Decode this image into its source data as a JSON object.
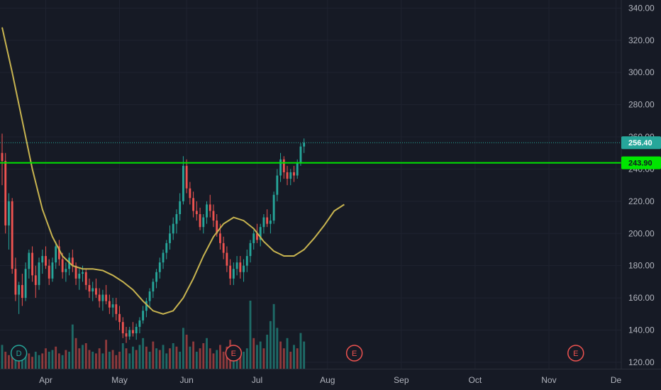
{
  "chart_data": {
    "type": "candlestick",
    "y_axis": {
      "ticks": [
        "340.00",
        "320.00",
        "300.00",
        "280.00",
        "260.00",
        "240.00",
        "220.00",
        "200.00",
        "180.00",
        "160.00",
        "140.00",
        "120.00"
      ],
      "tick_values": [
        340,
        320,
        300,
        280,
        260,
        240,
        220,
        200,
        180,
        160,
        140,
        120
      ],
      "range": [
        116,
        345
      ]
    },
    "x_axis": {
      "ticks": [
        "Apr",
        "May",
        "Jun",
        "Jul",
        "Aug",
        "Sep",
        "Oct",
        "Nov",
        "De"
      ],
      "tick_days": [
        13,
        35,
        55,
        76,
        97,
        119,
        141,
        163,
        183
      ],
      "range_days": [
        0,
        185
      ]
    },
    "price_labels": {
      "last": "256.40",
      "line": "243.90"
    },
    "values": {
      "last_price": 256.4,
      "horizontal_line": 243.9
    },
    "colors": {
      "up": "#26a69a",
      "down": "#ef5350",
      "up_volume": "#1e6b67",
      "down_volume": "#8e3a3c",
      "moving_average": "#c8b450",
      "horizontal_line": "#00e600",
      "last_price": "#26a69a"
    },
    "markers": [
      {
        "text": "D",
        "day": 5,
        "color": "#26a69a"
      },
      {
        "text": "E",
        "day": 69,
        "color": "#ef5350"
      },
      {
        "text": "E",
        "day": 105,
        "color": "#ef5350"
      },
      {
        "text": "E",
        "day": 171,
        "color": "#ef5350"
      }
    ],
    "ohlc": [
      [
        0,
        250,
        262,
        230,
        245
      ],
      [
        1,
        245,
        250,
        200,
        205
      ],
      [
        2,
        205,
        225,
        190,
        220
      ],
      [
        3,
        220,
        222,
        175,
        178
      ],
      [
        4,
        178,
        185,
        158,
        162
      ],
      [
        5,
        162,
        170,
        150,
        168
      ],
      [
        6,
        168,
        175,
        155,
        160
      ],
      [
        7,
        160,
        182,
        158,
        178
      ],
      [
        8,
        178,
        190,
        172,
        188
      ],
      [
        9,
        188,
        192,
        170,
        174
      ],
      [
        10,
        174,
        180,
        160,
        168
      ],
      [
        11,
        168,
        185,
        165,
        182
      ],
      [
        12,
        182,
        190,
        175,
        186
      ],
      [
        13,
        186,
        192,
        178,
        180
      ],
      [
        14,
        180,
        184,
        168,
        172
      ],
      [
        15,
        172,
        185,
        170,
        182
      ],
      [
        16,
        182,
        195,
        178,
        192
      ],
      [
        17,
        192,
        196,
        180,
        184
      ],
      [
        18,
        184,
        188,
        172,
        176
      ],
      [
        19,
        176,
        182,
        170,
        178
      ],
      [
        20,
        178,
        188,
        174,
        185
      ],
      [
        21,
        185,
        190,
        176,
        180
      ],
      [
        22,
        180,
        182,
        168,
        172
      ],
      [
        23,
        172,
        178,
        165,
        175
      ],
      [
        24,
        175,
        180,
        170,
        176
      ],
      [
        25,
        176,
        178,
        165,
        168
      ],
      [
        26,
        168,
        172,
        160,
        164
      ],
      [
        27,
        164,
        170,
        158,
        166
      ],
      [
        28,
        166,
        172,
        160,
        162
      ],
      [
        29,
        162,
        166,
        154,
        158
      ],
      [
        30,
        158,
        165,
        152,
        162
      ],
      [
        31,
        162,
        168,
        156,
        158
      ],
      [
        32,
        158,
        162,
        150,
        154
      ],
      [
        33,
        154,
        160,
        148,
        156
      ],
      [
        34,
        156,
        160,
        146,
        150
      ],
      [
        35,
        150,
        155,
        140,
        145
      ],
      [
        36,
        145,
        148,
        135,
        138
      ],
      [
        37,
        138,
        142,
        132,
        136
      ],
      [
        38,
        136,
        142,
        134,
        140
      ],
      [
        39,
        140,
        145,
        136,
        138
      ],
      [
        40,
        138,
        144,
        134,
        142
      ],
      [
        41,
        142,
        148,
        138,
        146
      ],
      [
        42,
        146,
        155,
        144,
        152
      ],
      [
        43,
        152,
        160,
        148,
        158
      ],
      [
        44,
        158,
        166,
        154,
        164
      ],
      [
        45,
        164,
        172,
        160,
        170
      ],
      [
        46,
        170,
        178,
        166,
        176
      ],
      [
        47,
        176,
        185,
        172,
        182
      ],
      [
        48,
        182,
        190,
        178,
        188
      ],
      [
        49,
        188,
        196,
        184,
        194
      ],
      [
        50,
        194,
        205,
        190,
        200
      ],
      [
        51,
        200,
        210,
        196,
        206
      ],
      [
        52,
        206,
        215,
        200,
        212
      ],
      [
        53,
        212,
        225,
        208,
        220
      ],
      [
        54,
        220,
        248,
        218,
        242
      ],
      [
        55,
        242,
        246,
        225,
        228
      ],
      [
        56,
        228,
        232,
        218,
        222
      ],
      [
        57,
        222,
        226,
        210,
        214
      ],
      [
        58,
        214,
        220,
        208,
        212
      ],
      [
        59,
        212,
        216,
        202,
        204
      ],
      [
        60,
        204,
        212,
        200,
        210
      ],
      [
        61,
        210,
        220,
        206,
        218
      ],
      [
        62,
        218,
        224,
        210,
        214
      ],
      [
        63,
        214,
        218,
        204,
        208
      ],
      [
        64,
        208,
        212,
        198,
        200
      ],
      [
        65,
        200,
        206,
        190,
        194
      ],
      [
        66,
        194,
        198,
        184,
        188
      ],
      [
        67,
        188,
        192,
        176,
        180
      ],
      [
        68,
        180,
        184,
        168,
        172
      ],
      [
        69,
        172,
        182,
        168,
        178
      ],
      [
        70,
        178,
        186,
        174,
        182
      ],
      [
        71,
        182,
        186,
        172,
        176
      ],
      [
        72,
        176,
        184,
        170,
        180
      ],
      [
        73,
        180,
        190,
        176,
        186
      ],
      [
        74,
        186,
        196,
        182,
        194
      ],
      [
        75,
        194,
        202,
        190,
        200
      ],
      [
        76,
        200,
        206,
        194,
        196
      ],
      [
        77,
        196,
        206,
        192,
        204
      ],
      [
        78,
        204,
        212,
        200,
        210
      ],
      [
        79,
        210,
        215,
        204,
        206
      ],
      [
        80,
        206,
        212,
        200,
        208
      ],
      [
        81,
        208,
        226,
        206,
        224
      ],
      [
        82,
        224,
        240,
        220,
        236
      ],
      [
        83,
        236,
        250,
        232,
        246
      ],
      [
        84,
        246,
        248,
        234,
        238
      ],
      [
        85,
        238,
        242,
        230,
        234
      ],
      [
        86,
        234,
        240,
        230,
        238
      ],
      [
        87,
        238,
        242,
        232,
        236
      ],
      [
        88,
        236,
        246,
        234,
        244
      ],
      [
        89,
        244,
        256,
        242,
        254
      ],
      [
        90,
        254,
        259,
        250,
        256.4
      ]
    ],
    "volume": [
      [
        0,
        14,
        1
      ],
      [
        1,
        10,
        0
      ],
      [
        2,
        8,
        0
      ],
      [
        3,
        9,
        0
      ],
      [
        4,
        7,
        1
      ],
      [
        5,
        6,
        0
      ],
      [
        6,
        8,
        1
      ],
      [
        7,
        11,
        1
      ],
      [
        8,
        9,
        0
      ],
      [
        9,
        7,
        0
      ],
      [
        10,
        10,
        1
      ],
      [
        11,
        8,
        1
      ],
      [
        12,
        9,
        0
      ],
      [
        13,
        12,
        0
      ],
      [
        14,
        10,
        1
      ],
      [
        15,
        11,
        1
      ],
      [
        16,
        13,
        0
      ],
      [
        17,
        9,
        0
      ],
      [
        18,
        8,
        1
      ],
      [
        19,
        11,
        0
      ],
      [
        20,
        10,
        1
      ],
      [
        21,
        26,
        1
      ],
      [
        22,
        18,
        0
      ],
      [
        23,
        12,
        0
      ],
      [
        24,
        14,
        1
      ],
      [
        25,
        15,
        0
      ],
      [
        26,
        11,
        0
      ],
      [
        27,
        10,
        1
      ],
      [
        28,
        9,
        0
      ],
      [
        29,
        12,
        0
      ],
      [
        30,
        9,
        1
      ],
      [
        31,
        17,
        0
      ],
      [
        32,
        10,
        1
      ],
      [
        33,
        11,
        0
      ],
      [
        34,
        8,
        0
      ],
      [
        35,
        10,
        0
      ],
      [
        36,
        15,
        1
      ],
      [
        37,
        12,
        0
      ],
      [
        38,
        9,
        1
      ],
      [
        39,
        13,
        1
      ],
      [
        40,
        11,
        0
      ],
      [
        41,
        14,
        1
      ],
      [
        42,
        18,
        1
      ],
      [
        43,
        13,
        0
      ],
      [
        44,
        10,
        1
      ],
      [
        45,
        16,
        0
      ],
      [
        46,
        12,
        1
      ],
      [
        47,
        11,
        0
      ],
      [
        48,
        14,
        1
      ],
      [
        49,
        9,
        1
      ],
      [
        50,
        12,
        0
      ],
      [
        51,
        15,
        1
      ],
      [
        52,
        13,
        0
      ],
      [
        53,
        10,
        1
      ],
      [
        54,
        24,
        1
      ],
      [
        55,
        20,
        0
      ],
      [
        56,
        13,
        1
      ],
      [
        57,
        16,
        0
      ],
      [
        58,
        10,
        1
      ],
      [
        59,
        12,
        0
      ],
      [
        60,
        15,
        0
      ],
      [
        61,
        18,
        1
      ],
      [
        62,
        12,
        0
      ],
      [
        63,
        9,
        0
      ],
      [
        64,
        11,
        1
      ],
      [
        65,
        14,
        0
      ],
      [
        66,
        10,
        0
      ],
      [
        67,
        13,
        0
      ],
      [
        68,
        17,
        0
      ],
      [
        69,
        12,
        1
      ],
      [
        70,
        9,
        1
      ],
      [
        71,
        11,
        0
      ],
      [
        72,
        10,
        1
      ],
      [
        73,
        12,
        1
      ],
      [
        74,
        40,
        1
      ],
      [
        75,
        18,
        0
      ],
      [
        76,
        14,
        1
      ],
      [
        77,
        16,
        1
      ],
      [
        78,
        12,
        0
      ],
      [
        79,
        20,
        1
      ],
      [
        80,
        28,
        1
      ],
      [
        81,
        38,
        1
      ],
      [
        82,
        24,
        1
      ],
      [
        83,
        16,
        0
      ],
      [
        84,
        12,
        0
      ],
      [
        85,
        18,
        1
      ],
      [
        86,
        10,
        0
      ],
      [
        87,
        14,
        1
      ],
      [
        88,
        12,
        0
      ],
      [
        89,
        21,
        1
      ],
      [
        90,
        16,
        1
      ]
    ],
    "moving_average": [
      [
        0,
        328
      ],
      [
        3,
        300
      ],
      [
        6,
        270
      ],
      [
        9,
        240
      ],
      [
        12,
        215
      ],
      [
        15,
        198
      ],
      [
        18,
        186
      ],
      [
        21,
        180
      ],
      [
        24,
        178
      ],
      [
        27,
        178
      ],
      [
        30,
        177
      ],
      [
        33,
        174
      ],
      [
        36,
        170
      ],
      [
        39,
        165
      ],
      [
        42,
        158
      ],
      [
        45,
        152
      ],
      [
        48,
        150
      ],
      [
        51,
        152
      ],
      [
        54,
        160
      ],
      [
        57,
        172
      ],
      [
        60,
        186
      ],
      [
        63,
        198
      ],
      [
        66,
        206
      ],
      [
        69,
        210
      ],
      [
        72,
        208
      ],
      [
        75,
        203
      ],
      [
        78,
        195
      ],
      [
        81,
        189
      ],
      [
        84,
        186
      ],
      [
        87,
        186
      ],
      [
        90,
        190
      ],
      [
        93,
        197
      ],
      [
        96,
        205
      ],
      [
        99,
        214
      ],
      [
        102,
        218
      ]
    ]
  }
}
